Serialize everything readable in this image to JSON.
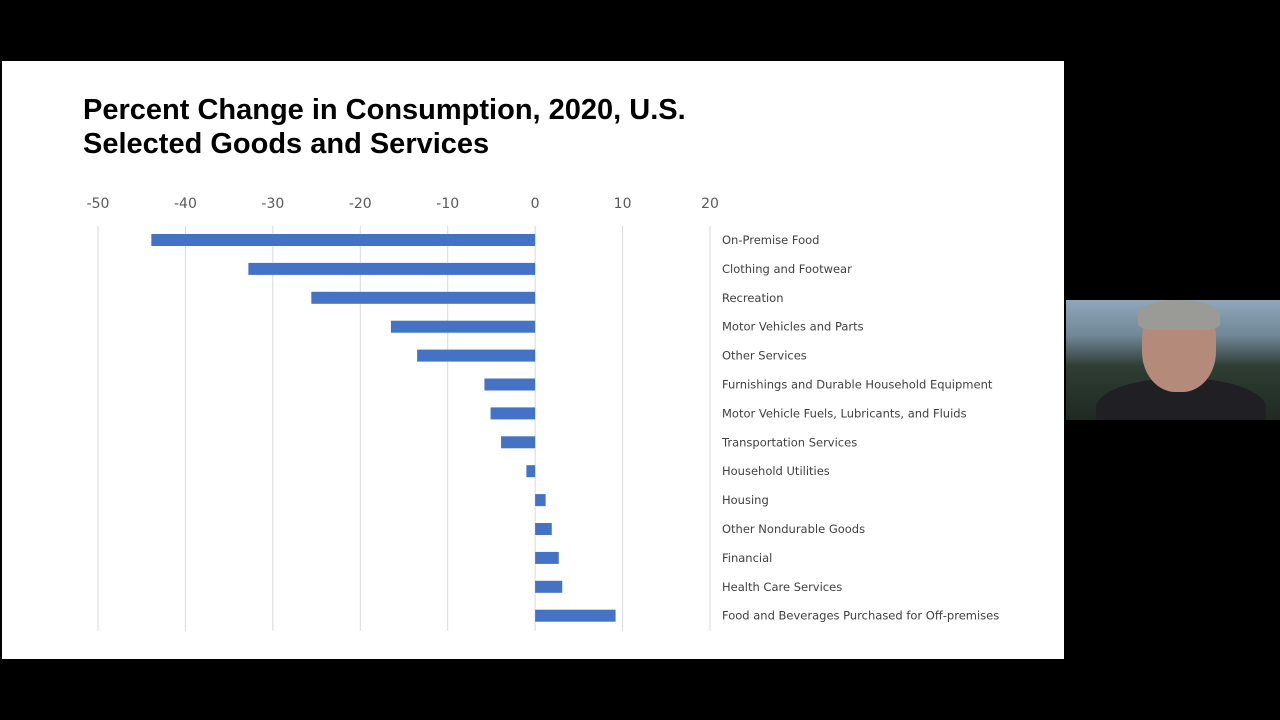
{
  "slide": {
    "title_line1": "Percent Change in Consumption, 2020, U.S.",
    "title_line2": "Selected Goods and Services"
  },
  "chart_data": {
    "type": "bar",
    "orientation": "horizontal",
    "title": "Percent Change in Consumption, 2020, U.S. Selected Goods and Services",
    "xlim": [
      -50,
      20
    ],
    "x_ticks": [
      -50,
      -40,
      -30,
      -20,
      -10,
      0,
      10,
      20
    ],
    "x_axis_position": "top",
    "grid": true,
    "bar_color": "#4472C4",
    "categories": [
      "On-Premise Food",
      "Clothing and Footwear",
      "Recreation",
      "Motor Vehicles and Parts",
      "Other Services",
      "Furnishings and Durable Household Equipment",
      "Motor Vehicle Fuels, Lubricants, and Fluids",
      "Transportation Services",
      "Household Utilities",
      "Housing",
      "Other Nondurable Goods",
      "Financial",
      "Health Care Services",
      "Food and Beverages Purchased for Off-premises"
    ],
    "values": [
      -43.9,
      -32.8,
      -25.6,
      -16.5,
      -13.5,
      -5.8,
      -5.1,
      -3.9,
      -1.0,
      1.2,
      1.9,
      2.7,
      3.1,
      9.2
    ]
  },
  "webcam": {
    "description_icon": "presenter-video"
  }
}
